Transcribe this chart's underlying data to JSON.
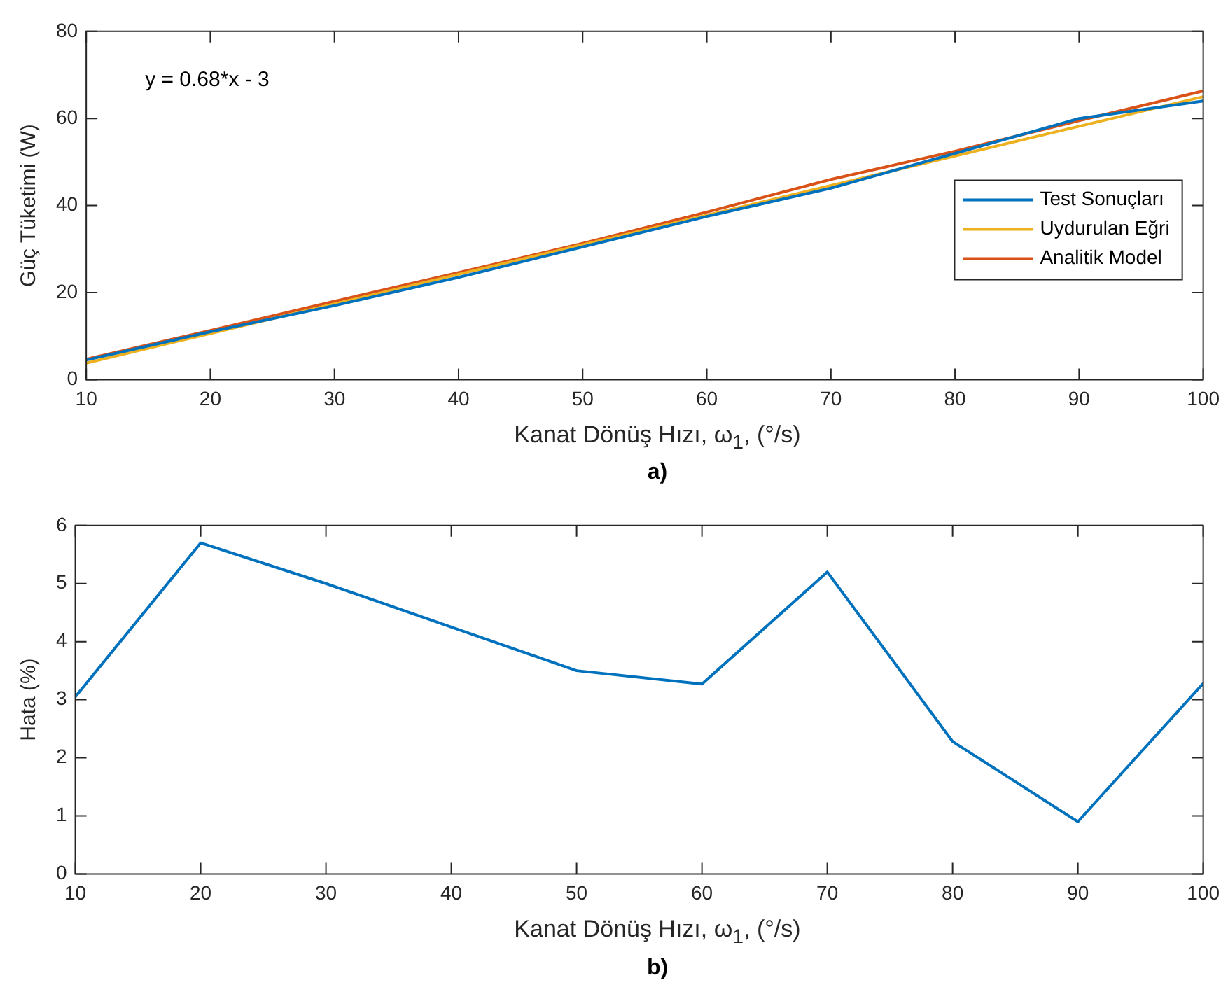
{
  "chart_data": [
    {
      "type": "line",
      "xlabel": "Kanat Dönüş Hızı, ω$_{1}$, (°/s)",
      "ylabel": "Güç Tüketimi (W)",
      "annotations": [
        "y = 0.68*x - 3",
        "a)"
      ],
      "x": [
        10,
        20,
        30,
        40,
        50,
        60,
        70,
        80,
        90,
        100
      ],
      "series": [
        {
          "name": "Test Sonuçları",
          "color": "#0072bd",
          "values": [
            4.5,
            11,
            17,
            23.5,
            30.5,
            37.5,
            44,
            52,
            60,
            64
          ]
        },
        {
          "name": "Uydurulan Eğri",
          "color": "#edb120",
          "values": [
            3.8,
            10.6,
            17.4,
            24.2,
            31,
            37.8,
            44.6,
            51.4,
            58.2,
            65
          ]
        },
        {
          "name": "Analitik Model",
          "color": "#d95319",
          "values": [
            4.7,
            11.3,
            18,
            24.6,
            31.3,
            38.5,
            46,
            52.5,
            59.5,
            66.3
          ]
        }
      ],
      "xlim": [
        10,
        100
      ],
      "xticks": [
        10,
        20,
        30,
        40,
        50,
        60,
        70,
        80,
        90,
        100
      ],
      "ylim": [
        0,
        80
      ],
      "yticks": [
        0,
        20,
        40,
        60,
        80
      ],
      "legend": "right",
      "grid": false,
      "marker": "none",
      "line_style": "solid"
    },
    {
      "type": "line",
      "xlabel": "Kanat Dönüş Hızı, ω$_{1}$, (°/s)",
      "ylabel": "Hata (%)",
      "annotations": [
        "b)"
      ],
      "x": [
        10,
        20,
        30,
        40,
        50,
        60,
        70,
        80,
        90,
        100
      ],
      "series": [
        {
          "color": "#0072bd",
          "values": [
            3.05,
            5.7,
            5.0,
            4.25,
            3.5,
            3.27,
            5.2,
            2.28,
            0.9,
            3.28
          ]
        }
      ],
      "xlim": [
        10,
        100
      ],
      "xticks": [
        10,
        20,
        30,
        40,
        50,
        60,
        70,
        80,
        90,
        100
      ],
      "ylim": [
        0,
        6
      ],
      "yticks": [
        0,
        1,
        2,
        3,
        4,
        5,
        6
      ],
      "grid": false,
      "marker": "none",
      "line_style": "solid"
    }
  ]
}
